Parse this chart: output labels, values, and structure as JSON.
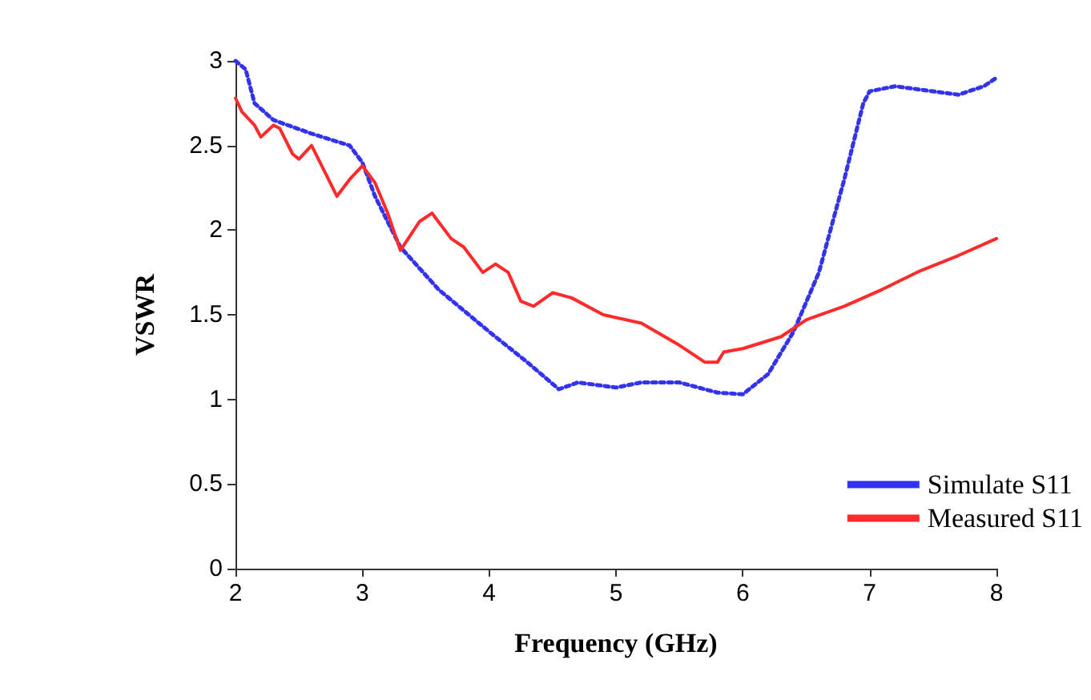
{
  "chart_data": {
    "type": "line",
    "xlabel": "Frequency (GHz)",
    "ylabel": "VSWR",
    "xlim": [
      2,
      8
    ],
    "xticks": [
      2,
      3,
      4,
      5,
      6,
      7,
      8
    ],
    "ylim": [
      0,
      3
    ],
    "yticks": [
      0,
      0.5,
      1,
      1.5,
      2,
      2.5,
      3
    ],
    "grid": false,
    "legend": "bottom right",
    "marker": "none",
    "series": [
      {
        "name": "Simulate S11",
        "color": "#3333ee",
        "line_style": "dotted",
        "x": [
          2,
          2.08,
          2.15,
          2.3,
          2.6,
          2.9,
          3.0,
          3.1,
          3.3,
          3.6,
          4.0,
          4.3,
          4.55,
          4.7,
          5.0,
          5.2,
          5.5,
          5.8,
          6.0,
          6.2,
          6.4,
          6.6,
          6.8,
          6.95,
          7.0,
          7.2,
          7.5,
          7.7,
          7.9,
          8.0
        ],
        "values": [
          3,
          2.95,
          2.75,
          2.65,
          2.57,
          2.5,
          2.4,
          2.2,
          1.9,
          1.65,
          1.4,
          1.22,
          1.06,
          1.1,
          1.07,
          1.1,
          1.1,
          1.04,
          1.03,
          1.15,
          1.4,
          1.75,
          2.3,
          2.75,
          2.82,
          2.85,
          2.82,
          2.8,
          2.85,
          2.9
        ]
      },
      {
        "name": "Measured S11",
        "color": "#ff2a2a",
        "line_style": "solid",
        "x": [
          2,
          2.05,
          2.15,
          2.2,
          2.3,
          2.35,
          2.45,
          2.5,
          2.6,
          2.7,
          2.8,
          2.9,
          3.0,
          3.1,
          3.2,
          3.3,
          3.45,
          3.55,
          3.7,
          3.8,
          3.95,
          4.05,
          4.15,
          4.25,
          4.35,
          4.5,
          4.65,
          4.9,
          5.2,
          5.5,
          5.7,
          5.8,
          5.85,
          6.0,
          6.3,
          6.5,
          6.8,
          7.1,
          7.4,
          7.7,
          8.0
        ],
        "values": [
          2.78,
          2.7,
          2.62,
          2.55,
          2.62,
          2.6,
          2.45,
          2.42,
          2.5,
          2.35,
          2.2,
          2.3,
          2.38,
          2.28,
          2.1,
          1.88,
          2.05,
          2.1,
          1.95,
          1.9,
          1.75,
          1.8,
          1.75,
          1.58,
          1.55,
          1.63,
          1.6,
          1.5,
          1.45,
          1.32,
          1.22,
          1.22,
          1.28,
          1.3,
          1.37,
          1.47,
          1.55,
          1.65,
          1.76,
          1.85,
          1.95
        ]
      }
    ]
  }
}
